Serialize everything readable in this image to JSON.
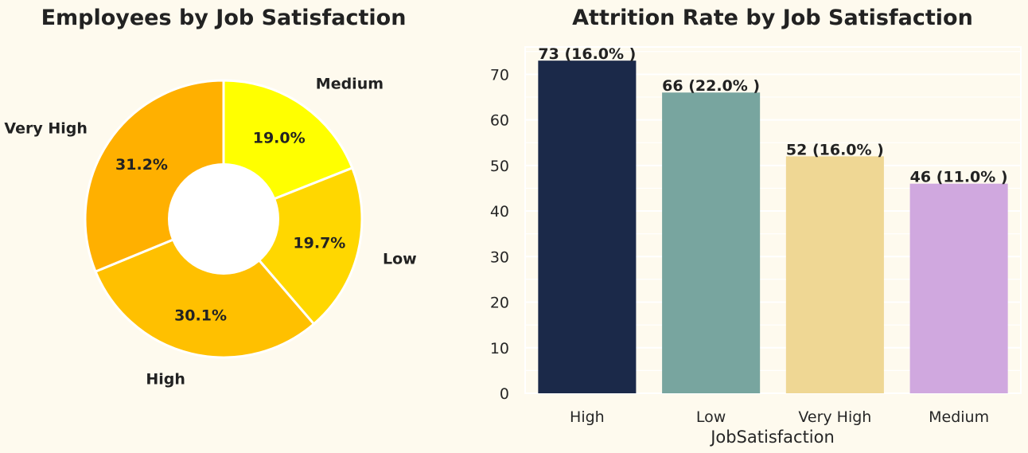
{
  "background": "#fefaee",
  "chart_data": [
    {
      "type": "pie",
      "donut": true,
      "title": "Employees by Job Satisfaction",
      "slices": [
        {
          "label": "Medium",
          "value": 19.0,
          "pct_label": "19.0%",
          "color": "#ffff00"
        },
        {
          "label": "Low",
          "value": 19.7,
          "pct_label": "19.7%",
          "color": "#ffd700"
        },
        {
          "label": "High",
          "value": 30.1,
          "pct_label": "30.1%",
          "color": "#ffc000"
        },
        {
          "label": "Very High",
          "value": 31.2,
          "pct_label": "31.2%",
          "color": "#ffb000"
        }
      ],
      "start_angle_deg": 90,
      "direction": "clockwise"
    },
    {
      "type": "bar",
      "title": "Attrition Rate by Job Satisfaction",
      "categories": [
        "High",
        "Low",
        "Very High",
        "Medium"
      ],
      "values": [
        73,
        66,
        52,
        46
      ],
      "data_labels": [
        "73 (16.0% )",
        "66 (22.0% )",
        "52 (16.0% )",
        "46 (11.0% )"
      ],
      "colors": [
        "#1b2949",
        "#78a59f",
        "#efd794",
        "#d0a8df"
      ],
      "xlabel": "JobSatisfaction",
      "ylabel": "",
      "ylim": [
        0,
        76
      ],
      "yticks": [
        0,
        10,
        20,
        30,
        40,
        50,
        60,
        70
      ],
      "grid": true
    }
  ]
}
